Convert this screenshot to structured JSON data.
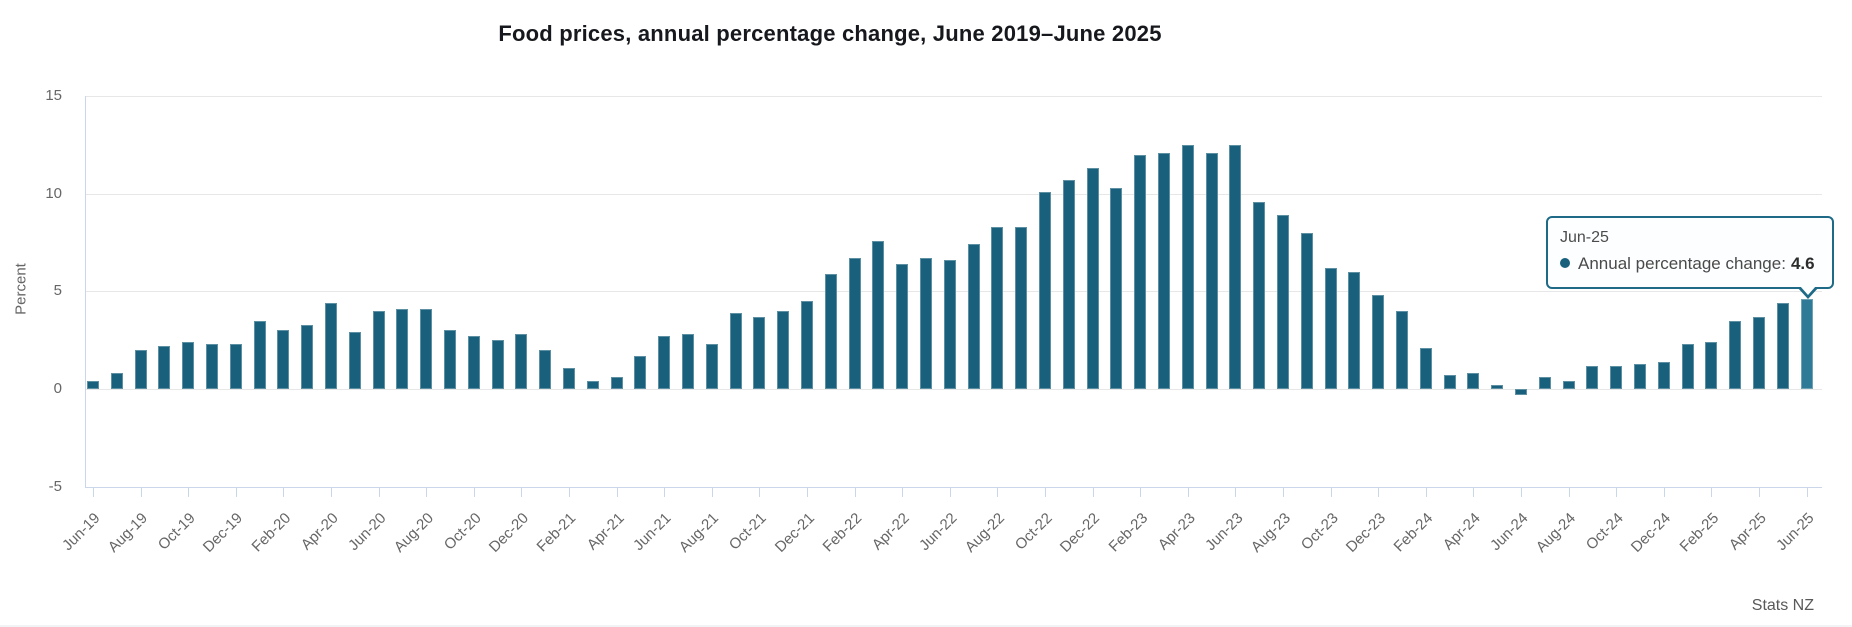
{
  "chart_data": {
    "type": "bar",
    "title": "Food prices, annual percentage change, June 2019–June 2025",
    "ylabel": "Percent",
    "ylim": [
      -5,
      15
    ],
    "yticks": [
      -5,
      0,
      5,
      10,
      15
    ],
    "grid": "horizontal",
    "legend": "none",
    "x_tick_label_every": 2,
    "categories": [
      "Jun-19",
      "Jul-19",
      "Aug-19",
      "Sep-19",
      "Oct-19",
      "Nov-19",
      "Dec-19",
      "Jan-20",
      "Feb-20",
      "Mar-20",
      "Apr-20",
      "May-20",
      "Jun-20",
      "Jul-20",
      "Aug-20",
      "Sep-20",
      "Oct-20",
      "Nov-20",
      "Dec-20",
      "Jan-21",
      "Feb-21",
      "Mar-21",
      "Apr-21",
      "May-21",
      "Jun-21",
      "Jul-21",
      "Aug-21",
      "Sep-21",
      "Oct-21",
      "Nov-21",
      "Dec-21",
      "Jan-22",
      "Feb-22",
      "Mar-22",
      "Apr-22",
      "May-22",
      "Jun-22",
      "Jul-22",
      "Aug-22",
      "Sep-22",
      "Oct-22",
      "Nov-22",
      "Dec-22",
      "Jan-23",
      "Feb-23",
      "Mar-23",
      "Apr-23",
      "May-23",
      "Jun-23",
      "Jul-23",
      "Aug-23",
      "Sep-23",
      "Oct-23",
      "Nov-23",
      "Dec-23",
      "Jan-24",
      "Feb-24",
      "Mar-24",
      "Apr-24",
      "May-24",
      "Jun-24",
      "Jul-24",
      "Aug-24",
      "Sep-24",
      "Oct-24",
      "Nov-24",
      "Dec-24",
      "Jan-25",
      "Feb-25",
      "Mar-25",
      "Apr-25",
      "May-25",
      "Jun-25"
    ],
    "series": [
      {
        "name": "Annual percentage change",
        "values": [
          0.4,
          0.8,
          2.0,
          2.2,
          2.4,
          2.3,
          2.3,
          3.5,
          3.0,
          3.3,
          4.4,
          2.9,
          4.0,
          4.1,
          4.1,
          3.0,
          2.7,
          2.5,
          2.8,
          2.0,
          1.1,
          0.4,
          0.6,
          1.7,
          2.7,
          2.8,
          2.3,
          3.9,
          3.7,
          4.0,
          4.5,
          5.9,
          6.7,
          7.6,
          6.4,
          6.7,
          6.6,
          7.4,
          8.3,
          8.3,
          10.1,
          10.7,
          11.3,
          10.3,
          12.0,
          12.1,
          12.5,
          12.1,
          12.5,
          9.6,
          8.9,
          8.0,
          6.2,
          6.0,
          4.8,
          4.0,
          2.1,
          0.7,
          0.8,
          0.2,
          -0.3,
          0.6,
          0.4,
          1.2,
          1.2,
          1.3,
          1.4,
          2.3,
          2.4,
          3.5,
          3.7,
          4.4,
          4.6
        ]
      }
    ],
    "highlighted_category": "Jun-25",
    "highlighted_index": 72
  },
  "colors": {
    "bar": "#18607c",
    "bar_highlight": "#2f7a96",
    "grid": "#e7e7e7",
    "axis": "#ccd6eb",
    "tick_label": "#666666",
    "title": "#16181d",
    "tooltip_border": "#1f6a87"
  },
  "tooltip": {
    "month": "Jun-25",
    "series_label": "Annual percentage change:",
    "value": "4.6"
  },
  "source": "Stats NZ"
}
